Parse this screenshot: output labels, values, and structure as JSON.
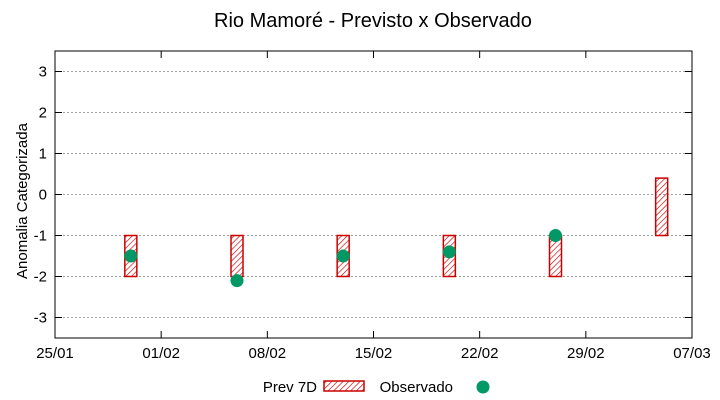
{
  "chart_data": {
    "type": "bar",
    "title": "Rio Mamoré - Previsto x Observado",
    "xlabel": "",
    "ylabel": "Anomalia Categorizada",
    "xlim": [
      "25/01",
      "07/03"
    ],
    "ylim": [
      -3.5,
      3.5
    ],
    "x_ticks": [
      "25/01",
      "01/02",
      "08/02",
      "15/02",
      "22/02",
      "29/02",
      "07/03"
    ],
    "y_ticks": [
      3,
      2,
      1,
      0,
      -1,
      -2,
      -3
    ],
    "grid": true,
    "legend_position": "bottom",
    "series": [
      {
        "name": "Prev 7D",
        "kind": "range-bar",
        "color": "#cc0000",
        "x": [
          "30/01",
          "06/02",
          "13/02",
          "20/02",
          "27/02",
          "05/03"
        ],
        "low": [
          -2,
          -2,
          -2,
          -2,
          -2,
          -1
        ],
        "high": [
          -1,
          -1,
          -1,
          -1,
          -1,
          0.4
        ]
      },
      {
        "name": "Observado",
        "kind": "point",
        "color": "#009966",
        "x": [
          "30/01",
          "06/02",
          "13/02",
          "20/02",
          "27/02"
        ],
        "values": [
          -1.5,
          -2.1,
          -1.5,
          -1.4,
          -1
        ]
      }
    ]
  }
}
